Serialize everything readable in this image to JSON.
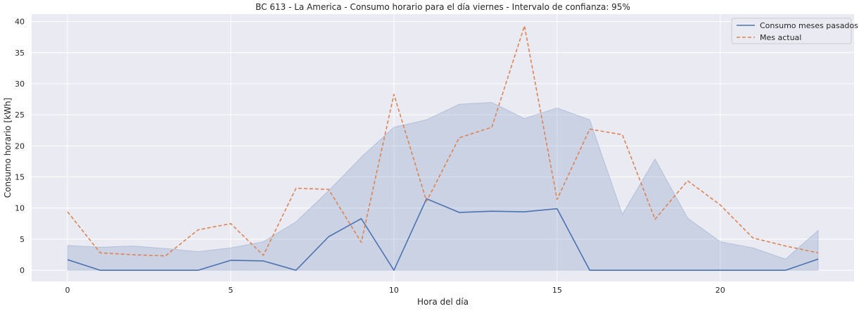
{
  "chart_data": {
    "type": "line",
    "title": "BC 613 - La America - Consumo horario para el día viernes - Intervalo de confianza: 95%",
    "xlabel": "Hora del día",
    "ylabel": "Consumo horario [kWh]",
    "xlim": [
      -1.1,
      24.1
    ],
    "ylim": [
      -1.8,
      41.2
    ],
    "xticks": [
      0,
      5,
      10,
      15,
      20
    ],
    "yticks": [
      0,
      5,
      10,
      15,
      20,
      25,
      30,
      35,
      40
    ],
    "grid": true,
    "legend_position": "top-right",
    "x": [
      0,
      1,
      2,
      3,
      4,
      5,
      6,
      7,
      8,
      9,
      10,
      11,
      12,
      13,
      14,
      15,
      16,
      17,
      18,
      19,
      20,
      21,
      22,
      23
    ],
    "series": [
      {
        "name": "Consumo meses pasados",
        "style": "solid",
        "color": "#4c72b0",
        "values": [
          1.7,
          0,
          0,
          0,
          0,
          1.6,
          1.5,
          0,
          5.4,
          8.3,
          0,
          11.5,
          9.3,
          9.5,
          9.4,
          9.9,
          0,
          0,
          0,
          0,
          0,
          0,
          0,
          1.8
        ]
      },
      {
        "name": "Mes actual",
        "style": "dashed",
        "color": "#dd8452",
        "values": [
          9.4,
          2.8,
          2.5,
          2.3,
          6.5,
          7.5,
          2.4,
          13.2,
          13.0,
          4.5,
          28.3,
          11.1,
          21.3,
          23.0,
          39.3,
          11.4,
          22.7,
          21.8,
          8.2,
          14.4,
          10.5,
          5.2,
          3.9,
          2.8
        ]
      }
    ],
    "confidence_band": {
      "color": "#4c72b0",
      "lower": [
        0,
        0,
        0,
        0,
        0,
        0,
        0,
        0,
        0,
        0,
        0,
        0,
        0,
        0,
        0,
        0,
        0,
        0,
        0,
        0,
        0,
        0,
        0,
        0
      ],
      "upper": [
        4.0,
        3.7,
        3.9,
        3.5,
        3.0,
        3.6,
        4.6,
        7.8,
        12.8,
        18.2,
        23.0,
        24.2,
        26.7,
        27.0,
        24.4,
        26.1,
        24.2,
        9.0,
        17.9,
        8.4,
        4.6,
        3.6,
        1.8,
        6.4
      ]
    }
  }
}
